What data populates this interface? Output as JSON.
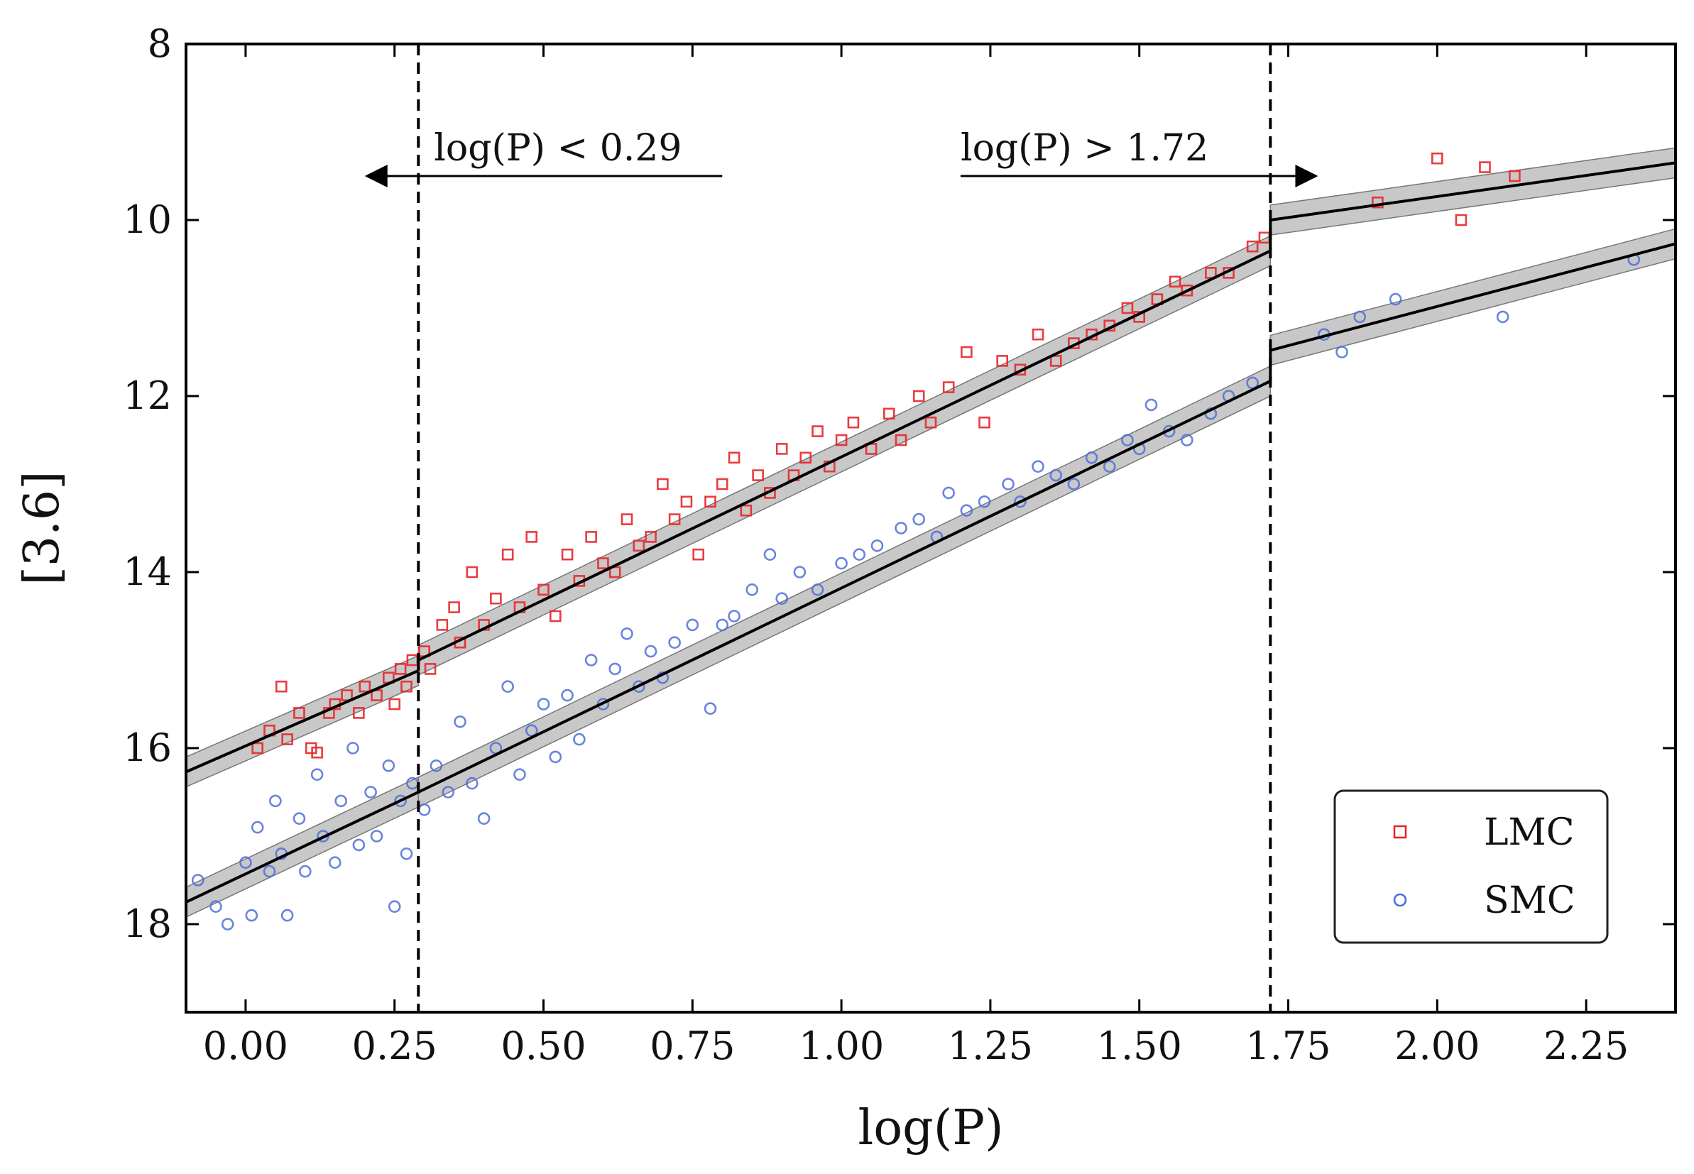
{
  "chart_data": {
    "type": "scatter",
    "title": "",
    "xlabel": "log(P)",
    "ylabel": "[3.6]",
    "xlim": [
      -0.1,
      2.4
    ],
    "ylim": [
      19,
      8
    ],
    "y_inverted": true,
    "x_ticks": [
      0.0,
      0.25,
      0.5,
      0.75,
      1.0,
      1.25,
      1.5,
      1.75,
      2.0,
      2.25
    ],
    "x_tick_labels": [
      "0.00",
      "0.25",
      "0.50",
      "0.75",
      "1.00",
      "1.25",
      "1.50",
      "1.75",
      "2.00",
      "2.25"
    ],
    "y_ticks": [
      8,
      10,
      12,
      14,
      16,
      18
    ],
    "y_tick_labels": [
      "8",
      "10",
      "12",
      "14",
      "16",
      "18"
    ],
    "grid": false,
    "legend_position": "bottom-right",
    "break_lines": [
      0.29,
      1.72
    ],
    "annotations": [
      {
        "text": "log(P) < 0.29",
        "direction": "left",
        "arrow_from_x": 0.8,
        "arrow_to_x": 0.2,
        "y": 9.5
      },
      {
        "text": "log(P) > 1.72",
        "direction": "right",
        "arrow_from_x": 1.2,
        "arrow_to_x": 1.8,
        "y": 9.5
      }
    ],
    "colors": {
      "LMC": "#e8262a",
      "SMC": "#4f6fd8",
      "fit": "#000000",
      "band": "#9a9a9a"
    },
    "series": [
      {
        "name": "LMC",
        "marker": "square",
        "color": "#e8262a",
        "points": [
          [
            0.02,
            16.0
          ],
          [
            0.04,
            15.8
          ],
          [
            0.06,
            15.3
          ],
          [
            0.07,
            15.9
          ],
          [
            0.09,
            15.6
          ],
          [
            0.11,
            16.0
          ],
          [
            0.12,
            16.05
          ],
          [
            0.14,
            15.6
          ],
          [
            0.15,
            15.5
          ],
          [
            0.17,
            15.4
          ],
          [
            0.19,
            15.6
          ],
          [
            0.2,
            15.3
          ],
          [
            0.22,
            15.4
          ],
          [
            0.24,
            15.2
          ],
          [
            0.25,
            15.5
          ],
          [
            0.26,
            15.1
          ],
          [
            0.27,
            15.3
          ],
          [
            0.28,
            15.0
          ],
          [
            0.3,
            14.9
          ],
          [
            0.31,
            15.1
          ],
          [
            0.33,
            14.6
          ],
          [
            0.35,
            14.4
          ],
          [
            0.36,
            14.8
          ],
          [
            0.38,
            14.0
          ],
          [
            0.4,
            14.6
          ],
          [
            0.42,
            14.3
          ],
          [
            0.44,
            13.8
          ],
          [
            0.46,
            14.4
          ],
          [
            0.48,
            13.6
          ],
          [
            0.5,
            14.2
          ],
          [
            0.52,
            14.5
          ],
          [
            0.54,
            13.8
          ],
          [
            0.56,
            14.1
          ],
          [
            0.58,
            13.6
          ],
          [
            0.6,
            13.9
          ],
          [
            0.62,
            14.0
          ],
          [
            0.64,
            13.4
          ],
          [
            0.66,
            13.7
          ],
          [
            0.68,
            13.6
          ],
          [
            0.7,
            13.0
          ],
          [
            0.72,
            13.4
          ],
          [
            0.74,
            13.2
          ],
          [
            0.76,
            13.8
          ],
          [
            0.78,
            13.2
          ],
          [
            0.8,
            13.0
          ],
          [
            0.82,
            12.7
          ],
          [
            0.84,
            13.3
          ],
          [
            0.86,
            12.9
          ],
          [
            0.88,
            13.1
          ],
          [
            0.9,
            12.6
          ],
          [
            0.92,
            12.9
          ],
          [
            0.94,
            12.7
          ],
          [
            0.96,
            12.4
          ],
          [
            0.98,
            12.8
          ],
          [
            1.0,
            12.5
          ],
          [
            1.02,
            12.3
          ],
          [
            1.05,
            12.6
          ],
          [
            1.08,
            12.2
          ],
          [
            1.1,
            12.5
          ],
          [
            1.13,
            12.0
          ],
          [
            1.15,
            12.3
          ],
          [
            1.18,
            11.9
          ],
          [
            1.21,
            11.5
          ],
          [
            1.24,
            12.3
          ],
          [
            1.27,
            11.6
          ],
          [
            1.3,
            11.7
          ],
          [
            1.33,
            11.3
          ],
          [
            1.36,
            11.6
          ],
          [
            1.39,
            11.4
          ],
          [
            1.42,
            11.3
          ],
          [
            1.45,
            11.2
          ],
          [
            1.48,
            11.0
          ],
          [
            1.5,
            11.1
          ],
          [
            1.53,
            10.9
          ],
          [
            1.56,
            10.7
          ],
          [
            1.58,
            10.8
          ],
          [
            1.62,
            10.6
          ],
          [
            1.65,
            10.6
          ],
          [
            1.69,
            10.3
          ],
          [
            1.71,
            10.2
          ],
          [
            1.9,
            9.8
          ],
          [
            2.0,
            9.3
          ],
          [
            2.04,
            10.0
          ],
          [
            2.08,
            9.4
          ],
          [
            2.13,
            9.5
          ]
        ]
      },
      {
        "name": "SMC",
        "marker": "circle",
        "color": "#4f6fd8",
        "points": [
          [
            -0.08,
            17.5
          ],
          [
            -0.05,
            17.8
          ],
          [
            -0.03,
            18.0
          ],
          [
            0.0,
            17.3
          ],
          [
            0.01,
            17.9
          ],
          [
            0.02,
            16.9
          ],
          [
            0.04,
            17.4
          ],
          [
            0.05,
            16.6
          ],
          [
            0.06,
            17.2
          ],
          [
            0.07,
            17.9
          ],
          [
            0.09,
            16.8
          ],
          [
            0.1,
            17.4
          ],
          [
            0.12,
            16.3
          ],
          [
            0.13,
            17.0
          ],
          [
            0.15,
            17.3
          ],
          [
            0.16,
            16.6
          ],
          [
            0.18,
            16.0
          ],
          [
            0.19,
            17.1
          ],
          [
            0.21,
            16.5
          ],
          [
            0.22,
            17.0
          ],
          [
            0.24,
            16.2
          ],
          [
            0.25,
            17.8
          ],
          [
            0.26,
            16.6
          ],
          [
            0.27,
            17.2
          ],
          [
            0.28,
            16.4
          ],
          [
            0.3,
            16.7
          ],
          [
            0.32,
            16.2
          ],
          [
            0.34,
            16.5
          ],
          [
            0.36,
            15.7
          ],
          [
            0.38,
            16.4
          ],
          [
            0.4,
            16.8
          ],
          [
            0.42,
            16.0
          ],
          [
            0.44,
            15.3
          ],
          [
            0.46,
            16.3
          ],
          [
            0.48,
            15.8
          ],
          [
            0.5,
            15.5
          ],
          [
            0.52,
            16.1
          ],
          [
            0.54,
            15.4
          ],
          [
            0.56,
            15.9
          ],
          [
            0.58,
            15.0
          ],
          [
            0.6,
            15.5
          ],
          [
            0.62,
            15.1
          ],
          [
            0.64,
            14.7
          ],
          [
            0.66,
            15.3
          ],
          [
            0.68,
            14.9
          ],
          [
            0.7,
            15.2
          ],
          [
            0.72,
            14.8
          ],
          [
            0.75,
            14.6
          ],
          [
            0.78,
            15.55
          ],
          [
            0.8,
            14.6
          ],
          [
            0.82,
            14.5
          ],
          [
            0.85,
            14.2
          ],
          [
            0.88,
            13.8
          ],
          [
            0.9,
            14.3
          ],
          [
            0.93,
            14.0
          ],
          [
            0.96,
            14.2
          ],
          [
            1.0,
            13.9
          ],
          [
            1.03,
            13.8
          ],
          [
            1.06,
            13.7
          ],
          [
            1.1,
            13.5
          ],
          [
            1.13,
            13.4
          ],
          [
            1.16,
            13.6
          ],
          [
            1.18,
            13.1
          ],
          [
            1.21,
            13.3
          ],
          [
            1.24,
            13.2
          ],
          [
            1.28,
            13.0
          ],
          [
            1.3,
            13.2
          ],
          [
            1.33,
            12.8
          ],
          [
            1.36,
            12.9
          ],
          [
            1.39,
            13.0
          ],
          [
            1.42,
            12.7
          ],
          [
            1.45,
            12.8
          ],
          [
            1.48,
            12.5
          ],
          [
            1.5,
            12.6
          ],
          [
            1.52,
            12.1
          ],
          [
            1.55,
            12.4
          ],
          [
            1.58,
            12.5
          ],
          [
            1.62,
            12.2
          ],
          [
            1.65,
            12.0
          ],
          [
            1.69,
            11.85
          ],
          [
            1.81,
            11.3
          ],
          [
            1.84,
            11.5
          ],
          [
            1.87,
            11.1
          ],
          [
            1.93,
            10.9
          ],
          [
            2.11,
            11.1
          ],
          [
            2.33,
            10.45
          ]
        ]
      }
    ],
    "fits": [
      {
        "series": "LMC",
        "segments": [
          [
            [
              -0.1,
              16.27
            ],
            [
              0.29,
              15.12
            ]
          ],
          [
            [
              0.29,
              15.0
            ],
            [
              1.72,
              10.35
            ]
          ],
          [
            [
              1.72,
              10.0
            ],
            [
              2.4,
              9.35
            ]
          ]
        ]
      },
      {
        "series": "SMC",
        "segments": [
          [
            [
              -0.1,
              17.75
            ],
            [
              0.29,
              16.5
            ]
          ],
          [
            [
              0.29,
              16.5
            ],
            [
              1.72,
              11.83
            ]
          ],
          [
            [
              1.72,
              11.48
            ],
            [
              2.4,
              10.27
            ]
          ]
        ]
      }
    ]
  }
}
